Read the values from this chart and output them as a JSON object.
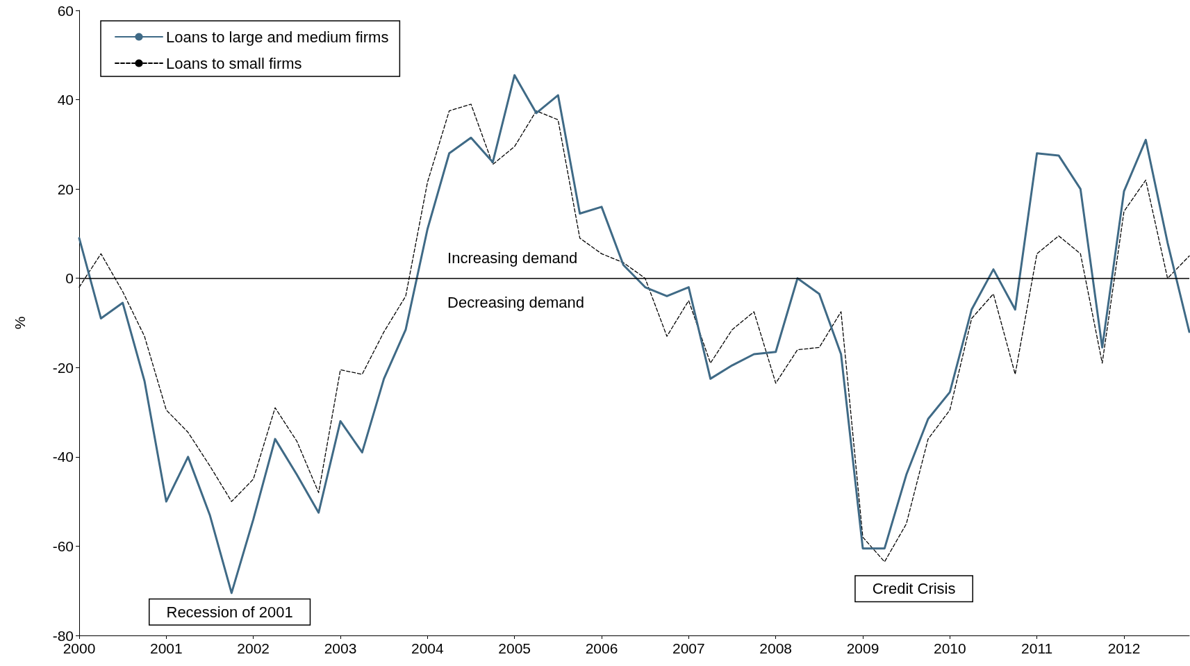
{
  "chart_data": {
    "type": "line",
    "ylabel": "%",
    "x": [
      2000,
      2000.25,
      2000.5,
      2000.75,
      2001,
      2001.25,
      2001.5,
      2001.75,
      2002,
      2002.25,
      2002.5,
      2002.75,
      2003,
      2003.25,
      2003.5,
      2003.75,
      2004,
      2004.25,
      2004.5,
      2004.75,
      2005,
      2005.25,
      2005.5,
      2005.75,
      2006,
      2006.25,
      2006.5,
      2006.75,
      2007,
      2007.25,
      2007.5,
      2007.75,
      2008,
      2008.25,
      2008.5,
      2008.75,
      2009,
      2009.25,
      2009.5,
      2009.75,
      2010,
      2010.25,
      2010.5,
      2010.75,
      2011,
      2011.25,
      2011.5,
      2011.75,
      2012,
      2012.25,
      2012.5,
      2012.75
    ],
    "series": [
      {
        "name": "Loans to large and medium firms",
        "color": "#3f6a86",
        "line_style": "solid",
        "values": [
          9,
          -9,
          -5.5,
          -23,
          -50,
          -40,
          -53,
          -70.5,
          -54,
          -36,
          -44,
          -52.5,
          -32,
          -39,
          -22.5,
          -11.5,
          11,
          28,
          31.5,
          26,
          45.5,
          37,
          41,
          14.5,
          16,
          3,
          -2,
          -4,
          -2,
          -22.5,
          -19.5,
          -17,
          -16.5,
          0,
          -3.5,
          -17,
          -60.5,
          -60.5,
          -44,
          -31.5,
          -25.5,
          -7,
          2,
          -7,
          28,
          27.5,
          20,
          -15.5,
          19.5,
          31,
          8,
          -12
        ]
      },
      {
        "name": "Loans to small firms",
        "color": "#000000",
        "line_style": "dashed",
        "values": [
          -2,
          5.5,
          -3,
          -13,
          -29.5,
          -34.5,
          -42,
          -50,
          -45,
          -29,
          -36.5,
          -48,
          -20.5,
          -21.5,
          -12,
          -4,
          21.5,
          37.5,
          39,
          25.5,
          29.5,
          37.5,
          35.5,
          9,
          5.5,
          3.5,
          0,
          -13,
          -5,
          -19,
          -11.5,
          -7.5,
          -23.5,
          -16,
          -15.5,
          -7.5,
          -58,
          -63.5,
          -55,
          -36,
          -29.5,
          -9,
          -3.5,
          -21.5,
          5.5,
          9.5,
          5.5,
          -19,
          15,
          22,
          0,
          5
        ]
      }
    ],
    "xlim": [
      2000,
      2012.75
    ],
    "xticks": [
      2000,
      2001,
      2002,
      2003,
      2004,
      2005,
      2006,
      2007,
      2008,
      2009,
      2010,
      2011,
      2012
    ],
    "ylim": [
      -80,
      60
    ],
    "yticks": [
      -80,
      -60,
      -40,
      -20,
      0,
      20,
      40,
      60
    ],
    "ref_lines": [
      {
        "axis": "y",
        "value": 0,
        "label": null,
        "color": "#000000"
      }
    ],
    "annotations": [
      "Increasing demand",
      "Decreasing demand",
      "Recession of 2001",
      "Credit Crisis"
    ],
    "grid": false,
    "legend": "top left",
    "marker": "none"
  }
}
